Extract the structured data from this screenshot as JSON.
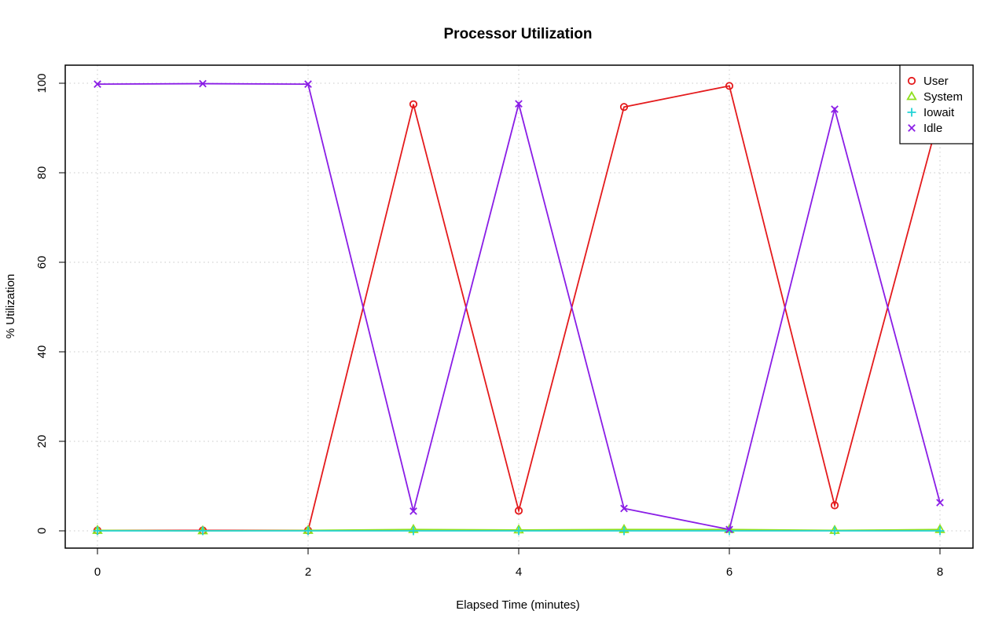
{
  "chart_data": {
    "type": "line",
    "title": "Processor Utilization",
    "xlabel": "Elapsed Time (minutes)",
    "ylabel": "% Utilization",
    "xlim": [
      0,
      8
    ],
    "ylim": [
      0,
      100
    ],
    "x_ticks": [
      0,
      2,
      4,
      6,
      8
    ],
    "y_ticks": [
      0,
      20,
      40,
      60,
      80,
      100
    ],
    "grid": true,
    "legend_position": "top-right",
    "x": [
      0,
      1,
      2,
      3,
      4,
      5,
      6,
      7,
      8
    ],
    "series": [
      {
        "name": "User",
        "color": "#e41a1c",
        "marker": "circle",
        "values": [
          0.1,
          0.1,
          0.1,
          95.3,
          4.5,
          94.7,
          99.4,
          5.7,
          93.5
        ]
      },
      {
        "name": "System",
        "color": "#8fe01f",
        "marker": "triangle",
        "values": [
          0.1,
          0.0,
          0.1,
          0.3,
          0.2,
          0.3,
          0.3,
          0.1,
          0.3
        ]
      },
      {
        "name": "Iowait",
        "color": "#22d3d6",
        "marker": "plus",
        "values": [
          0.0,
          0.0,
          0.0,
          0.0,
          0.0,
          0.0,
          0.0,
          0.0,
          0.0
        ]
      },
      {
        "name": "Idle",
        "color": "#8a1de6",
        "marker": "x",
        "values": [
          99.8,
          99.9,
          99.8,
          4.4,
          95.4,
          5.0,
          0.3,
          94.2,
          6.3
        ]
      }
    ]
  }
}
